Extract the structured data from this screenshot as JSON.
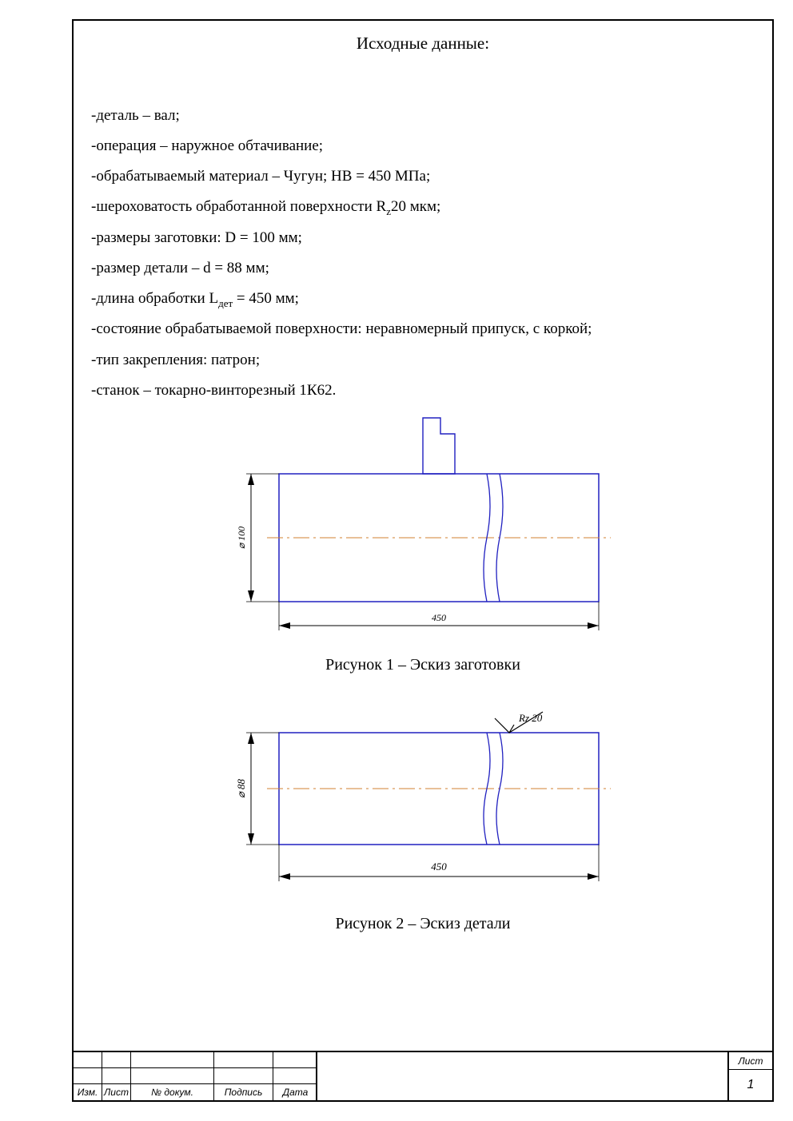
{
  "title": "Исходные данные:",
  "list": {
    "i1": "-деталь – вал;",
    "i2": "-операция – наружное обтачивание;",
    "i3": "-обрабатываемый материал – Чугун; HB = 450 МПа;",
    "i4a": "-шероховатость обработанной поверхности R",
    "i4sub": "z",
    "i4b": "20 мкм;",
    "i5": "-размеры заготовки: D = 100 мм;",
    "i6": "-размер детали – d = 88 мм;",
    "i7a": "-длина обработки L",
    "i7sub": "дет",
    "i7b": " = 450 мм;",
    "i8": "-состояние обрабатываемой поверхности: неравномерный припуск, с коркой;",
    "i9": "-тип закрепления: патрон;",
    "i10": "-станок – токарно-винторезный 1К62."
  },
  "figure1": {
    "caption": "Рисунок 1 – Эскиз заготовки",
    "diameter_label": "⌀ 100",
    "length_label": "450",
    "colors": {
      "outline": "#2020c0",
      "centerline": "#d08030",
      "dimension": "#000000",
      "tool": "#2020c0"
    },
    "dims": {
      "body_w": 400,
      "body_h": 160,
      "tool_w": 40,
      "tool_h": 70
    }
  },
  "figure2": {
    "caption": "Рисунок 2 – Эскиз детали",
    "diameter_label": "⌀ 88",
    "length_label": "450",
    "roughness_label": "Rz 20",
    "colors": {
      "outline": "#2020c0",
      "centerline": "#d08030",
      "dimension": "#000000"
    },
    "dims": {
      "body_w": 400,
      "body_h": 140
    }
  },
  "stamp": {
    "headers": {
      "c1": "Изм.",
      "c2": "Лист",
      "c3": "№ докум.",
      "c4": "Подпись",
      "c5": "Дата"
    },
    "right_label": "Лист",
    "page": "1"
  }
}
